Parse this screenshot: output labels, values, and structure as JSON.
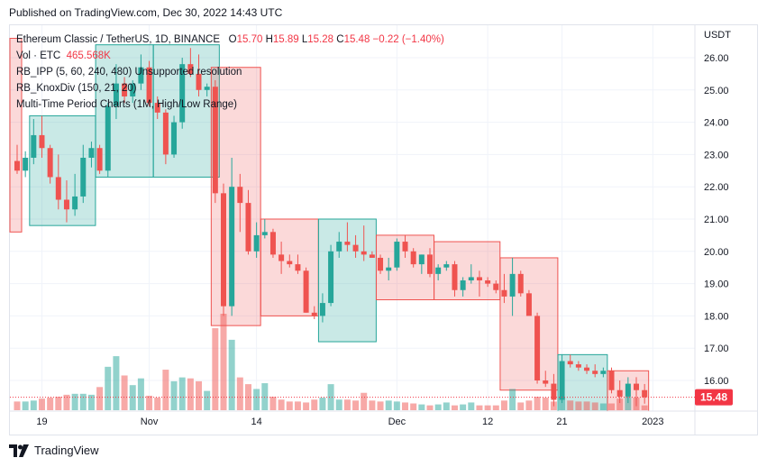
{
  "header": {
    "published": "Published on TradingView.com, Dec 30, 2022 14:43 UTC"
  },
  "legend": {
    "symbol": "Ethereum Classic / TetherUS, 1D, BINANCE",
    "o_label": "O",
    "o": "15.70",
    "h_label": "H",
    "h": "15.89",
    "l_label": "L",
    "l": "15.28",
    "c_label": "C",
    "c": "15.48",
    "change": "−0.22 (−1.40%)",
    "vol_label": "Vol · ETC",
    "vol": "465.568K",
    "ind1": "RB_IPP (5, 60, 240, 480) Unsupported resolution",
    "ind2": "RB_KnoxDiv (150, 21, 20)",
    "ind3": "Multi-Time Period Charts (1M, High/Low Range)"
  },
  "axis": {
    "currency": "USDT",
    "last_price": "15.48"
  },
  "footer": {
    "brand": "TradingView",
    "logo_icon": "tradingview-logo-icon"
  },
  "colors": {
    "up": "#26a69a",
    "down": "#ef5350",
    "up_fill": "rgba(38,166,154,0.25)",
    "down_fill": "rgba(239,83,80,0.22)",
    "vol_up": "rgba(38,166,154,0.5)",
    "vol_down": "rgba(239,83,80,0.5)",
    "price_tag": "#f23645"
  },
  "chart_data": {
    "type": "candlestick",
    "ylim": [
      15.0,
      26.6
    ],
    "y_ticks": [
      16.0,
      17.0,
      18.0,
      19.0,
      20.0,
      21.0,
      22.0,
      23.0,
      24.0,
      25.0,
      26.0
    ],
    "x_ticks": [
      {
        "label": "19",
        "index": 3
      },
      {
        "label": "Nov",
        "index": 16
      },
      {
        "label": "14",
        "index": 29
      },
      {
        "label": "Dec",
        "index": 46
      },
      {
        "label": "12",
        "index": 57
      },
      {
        "label": "21",
        "index": 66
      },
      {
        "label": "2023",
        "index": 77
      }
    ],
    "candles": [
      {
        "o": 22.8,
        "h": 23.3,
        "l": 22.4,
        "c": 22.5
      },
      {
        "o": 22.5,
        "h": 23.1,
        "l": 22.3,
        "c": 22.9
      },
      {
        "o": 22.9,
        "h": 24.1,
        "l": 22.7,
        "c": 23.6
      },
      {
        "o": 23.6,
        "h": 24.2,
        "l": 22.9,
        "c": 23.2
      },
      {
        "o": 23.2,
        "h": 23.3,
        "l": 22.1,
        "c": 22.3
      },
      {
        "o": 22.3,
        "h": 23.0,
        "l": 21.3,
        "c": 21.6
      },
      {
        "o": 21.6,
        "h": 22.2,
        "l": 20.9,
        "c": 21.3
      },
      {
        "o": 21.3,
        "h": 22.4,
        "l": 21.1,
        "c": 21.7
      },
      {
        "o": 21.7,
        "h": 23.3,
        "l": 21.5,
        "c": 22.9
      },
      {
        "o": 22.9,
        "h": 23.4,
        "l": 22.6,
        "c": 23.2
      },
      {
        "o": 23.2,
        "h": 23.3,
        "l": 22.4,
        "c": 22.5
      },
      {
        "o": 22.5,
        "h": 24.6,
        "l": 22.3,
        "c": 24.5
      },
      {
        "o": 24.5,
        "h": 25.8,
        "l": 24.1,
        "c": 25.2
      },
      {
        "o": 25.2,
        "h": 25.4,
        "l": 24.6,
        "c": 24.8
      },
      {
        "o": 24.8,
        "h": 25.3,
        "l": 24.6,
        "c": 25.2
      },
      {
        "o": 25.2,
        "h": 26.1,
        "l": 25.0,
        "c": 25.7
      },
      {
        "o": 25.7,
        "h": 25.9,
        "l": 24.5,
        "c": 24.6
      },
      {
        "o": 24.6,
        "h": 24.8,
        "l": 24.1,
        "c": 24.3
      },
      {
        "o": 24.3,
        "h": 24.4,
        "l": 22.7,
        "c": 23.0
      },
      {
        "o": 23.0,
        "h": 24.2,
        "l": 22.9,
        "c": 24.0
      },
      {
        "o": 24.0,
        "h": 26.0,
        "l": 23.8,
        "c": 25.8
      },
      {
        "o": 25.8,
        "h": 26.3,
        "l": 25.4,
        "c": 25.5
      },
      {
        "o": 25.5,
        "h": 26.1,
        "l": 24.8,
        "c": 25.0
      },
      {
        "o": 25.0,
        "h": 25.2,
        "l": 24.8,
        "c": 25.1
      },
      {
        "o": 25.1,
        "h": 25.3,
        "l": 21.5,
        "c": 21.8
      },
      {
        "o": 21.8,
        "h": 22.1,
        "l": 18.0,
        "c": 18.3
      },
      {
        "o": 18.3,
        "h": 22.9,
        "l": 18.0,
        "c": 22.0
      },
      {
        "o": 22.0,
        "h": 22.4,
        "l": 20.6,
        "c": 21.5
      },
      {
        "o": 21.5,
        "h": 21.9,
        "l": 19.9,
        "c": 20.0
      },
      {
        "o": 20.0,
        "h": 20.9,
        "l": 19.8,
        "c": 20.5
      },
      {
        "o": 20.5,
        "h": 21.0,
        "l": 20.4,
        "c": 20.6
      },
      {
        "o": 20.6,
        "h": 20.7,
        "l": 19.8,
        "c": 19.9
      },
      {
        "o": 19.9,
        "h": 20.3,
        "l": 19.3,
        "c": 19.7
      },
      {
        "o": 19.7,
        "h": 19.9,
        "l": 19.5,
        "c": 19.6
      },
      {
        "o": 19.6,
        "h": 19.9,
        "l": 19.3,
        "c": 19.4
      },
      {
        "o": 19.4,
        "h": 19.5,
        "l": 18.1,
        "c": 18.1
      },
      {
        "o": 18.1,
        "h": 18.3,
        "l": 17.9,
        "c": 18.0
      },
      {
        "o": 18.0,
        "h": 18.7,
        "l": 17.8,
        "c": 18.4
      },
      {
        "o": 18.4,
        "h": 20.2,
        "l": 18.3,
        "c": 20.0
      },
      {
        "o": 20.0,
        "h": 20.6,
        "l": 19.8,
        "c": 20.3
      },
      {
        "o": 20.3,
        "h": 20.9,
        "l": 20.0,
        "c": 20.2
      },
      {
        "o": 20.2,
        "h": 20.5,
        "l": 19.8,
        "c": 20.0
      },
      {
        "o": 20.0,
        "h": 20.8,
        "l": 19.7,
        "c": 19.9
      },
      {
        "o": 19.9,
        "h": 20.0,
        "l": 19.8,
        "c": 19.8
      },
      {
        "o": 19.8,
        "h": 19.9,
        "l": 19.3,
        "c": 19.4
      },
      {
        "o": 19.4,
        "h": 19.8,
        "l": 19.1,
        "c": 19.5
      },
      {
        "o": 19.5,
        "h": 20.4,
        "l": 19.4,
        "c": 20.3
      },
      {
        "o": 20.3,
        "h": 20.5,
        "l": 19.8,
        "c": 20.0
      },
      {
        "o": 20.0,
        "h": 20.1,
        "l": 19.5,
        "c": 19.6
      },
      {
        "o": 19.6,
        "h": 19.9,
        "l": 19.3,
        "c": 19.9
      },
      {
        "o": 19.9,
        "h": 20.1,
        "l": 19.2,
        "c": 19.3
      },
      {
        "o": 19.3,
        "h": 19.6,
        "l": 19.1,
        "c": 19.5
      },
      {
        "o": 19.5,
        "h": 19.7,
        "l": 19.4,
        "c": 19.6
      },
      {
        "o": 19.6,
        "h": 19.7,
        "l": 18.6,
        "c": 18.8
      },
      {
        "o": 18.8,
        "h": 19.2,
        "l": 18.6,
        "c": 19.1
      },
      {
        "o": 19.1,
        "h": 19.6,
        "l": 19.0,
        "c": 19.2
      },
      {
        "o": 19.2,
        "h": 19.4,
        "l": 18.6,
        "c": 19.1
      },
      {
        "o": 19.1,
        "h": 19.2,
        "l": 18.9,
        "c": 19.0
      },
      {
        "o": 19.0,
        "h": 19.1,
        "l": 18.7,
        "c": 18.8
      },
      {
        "o": 18.8,
        "h": 19.3,
        "l": 18.4,
        "c": 18.6
      },
      {
        "o": 18.6,
        "h": 19.8,
        "l": 18.0,
        "c": 19.3
      },
      {
        "o": 19.3,
        "h": 19.4,
        "l": 18.6,
        "c": 18.7
      },
      {
        "o": 18.7,
        "h": 18.8,
        "l": 18.1,
        "c": 18.0
      },
      {
        "o": 18.0,
        "h": 18.1,
        "l": 15.9,
        "c": 16.0
      },
      {
        "o": 16.0,
        "h": 16.3,
        "l": 15.8,
        "c": 15.9
      },
      {
        "o": 15.9,
        "h": 16.2,
        "l": 15.2,
        "c": 15.4
      },
      {
        "o": 15.4,
        "h": 16.8,
        "l": 15.3,
        "c": 16.6
      },
      {
        "o": 16.6,
        "h": 16.8,
        "l": 16.4,
        "c": 16.5
      },
      {
        "o": 16.5,
        "h": 16.6,
        "l": 16.3,
        "c": 16.4
      },
      {
        "o": 16.4,
        "h": 16.5,
        "l": 16.2,
        "c": 16.3
      },
      {
        "o": 16.3,
        "h": 16.5,
        "l": 16.1,
        "c": 16.2
      },
      {
        "o": 16.2,
        "h": 16.4,
        "l": 16.1,
        "c": 16.3
      },
      {
        "o": 16.3,
        "h": 16.4,
        "l": 15.6,
        "c": 15.7
      },
      {
        "o": 15.7,
        "h": 16.0,
        "l": 15.3,
        "c": 15.5
      },
      {
        "o": 15.5,
        "h": 16.1,
        "l": 15.3,
        "c": 15.9
      },
      {
        "o": 15.9,
        "h": 16.1,
        "l": 15.2,
        "c": 15.7
      },
      {
        "o": 15.7,
        "h": 15.89,
        "l": 15.28,
        "c": 15.48
      }
    ],
    "volume_rel": [
      0.09,
      0.09,
      0.1,
      0.12,
      0.13,
      0.14,
      0.16,
      0.17,
      0.17,
      0.16,
      0.24,
      0.45,
      0.56,
      0.36,
      0.26,
      0.33,
      0.15,
      0.13,
      0.42,
      0.3,
      0.34,
      0.33,
      0.3,
      0.2,
      0.85,
      1.0,
      0.73,
      0.34,
      0.27,
      0.22,
      0.28,
      0.14,
      0.11,
      0.09,
      0.09,
      0.08,
      0.11,
      0.13,
      0.27,
      0.11,
      0.11,
      0.1,
      0.18,
      0.1,
      0.09,
      0.1,
      0.09,
      0.08,
      0.07,
      0.06,
      0.05,
      0.06,
      0.08,
      0.05,
      0.06,
      0.08,
      0.05,
      0.05,
      0.05,
      0.1,
      0.22,
      0.08,
      0.1,
      0.14,
      0.13,
      0.09,
      0.13,
      0.1,
      0.09,
      0.09,
      0.08,
      0.07,
      0.07,
      0.12,
      0.14,
      0.13,
      0.05
    ],
    "range_boxes": [
      {
        "from": -1,
        "to": -1,
        "high": 26.6,
        "low": 20.6,
        "dir": "down"
      },
      {
        "from": 2,
        "to": 9,
        "high": 24.2,
        "low": 20.8,
        "dir": "up"
      },
      {
        "from": 10,
        "to": 16,
        "high": 26.4,
        "low": 22.3,
        "dir": "up"
      },
      {
        "from": 17,
        "to": 24,
        "high": 26.4,
        "low": 22.3,
        "dir": "up"
      },
      {
        "from": 24,
        "to": 29,
        "high": 25.7,
        "low": 17.7,
        "dir": "down"
      },
      {
        "from": 30,
        "to": 36,
        "high": 21.0,
        "low": 18.0,
        "dir": "down"
      },
      {
        "from": 37,
        "to": 43,
        "high": 21.0,
        "low": 17.2,
        "dir": "up"
      },
      {
        "from": 44,
        "to": 50,
        "high": 20.5,
        "low": 18.5,
        "dir": "down"
      },
      {
        "from": 51,
        "to": 58,
        "high": 20.3,
        "low": 18.5,
        "dir": "down"
      },
      {
        "from": 59,
        "to": 65,
        "high": 19.8,
        "low": 15.7,
        "dir": "down"
      },
      {
        "from": 66,
        "to": 71,
        "high": 16.8,
        "low": 15.0,
        "dir": "up"
      },
      {
        "from": 72,
        "to": 76,
        "high": 16.3,
        "low": 15.0,
        "dir": "down"
      }
    ]
  }
}
